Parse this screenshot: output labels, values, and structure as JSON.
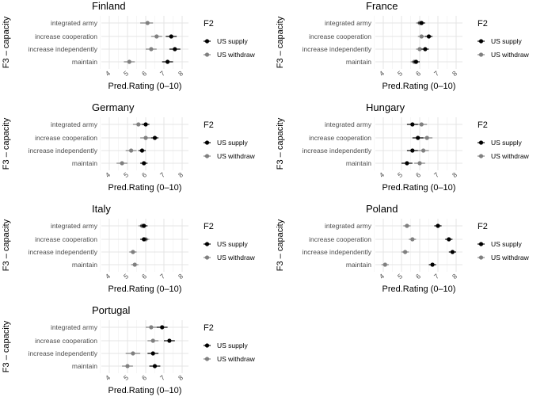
{
  "chart_data": {
    "type": "scatter",
    "subtype": "dot-and-errorbar (faceted)",
    "xlabel": "Pred.Rating (0–10)",
    "ylabel": "F3 – capacity",
    "xlim": [
      3.2,
      8.5
    ],
    "xticks": [
      "4",
      "5",
      "6",
      "7",
      "8"
    ],
    "categories": [
      "integrated army",
      "increase cooperation",
      "increase independently",
      "maintain"
    ],
    "legend": {
      "title": "F2",
      "position": "right",
      "entries": [
        {
          "name": "US supply",
          "color": "#000000"
        },
        {
          "name": "US withdraw",
          "color": "#808080"
        }
      ]
    },
    "facets": [
      {
        "title": "Finland",
        "series": [
          {
            "name": "US supply",
            "values": [
              null,
              7.4,
              7.6,
              7.2
            ],
            "ci": [
              null,
              [
                7.1,
                7.7
              ],
              [
                7.3,
                7.9
              ],
              [
                6.9,
                7.5
              ]
            ]
          },
          {
            "name": "US withdraw",
            "values": [
              6.1,
              6.6,
              6.3,
              5.1
            ],
            "ci": [
              [
                5.7,
                6.4
              ],
              [
                6.3,
                6.9
              ],
              [
                6.0,
                6.6
              ],
              [
                4.8,
                5.4
              ]
            ]
          }
        ]
      },
      {
        "title": "France",
        "series": [
          {
            "name": "US supply",
            "values": [
              6.1,
              6.5,
              6.3,
              5.8
            ],
            "ci": [
              [
                5.9,
                6.3
              ],
              [
                6.3,
                6.7
              ],
              [
                6.1,
                6.5
              ],
              [
                5.6,
                6.0
              ]
            ]
          },
          {
            "name": "US withdraw",
            "values": [
              6.0,
              6.1,
              6.0,
              5.7
            ],
            "ci": [
              [
                5.8,
                6.2
              ],
              [
                5.9,
                6.3
              ],
              [
                5.8,
                6.2
              ],
              [
                5.5,
                5.9
              ]
            ]
          }
        ]
      },
      {
        "title": "Germany",
        "series": [
          {
            "name": "US supply",
            "values": [
              6.0,
              6.5,
              5.8,
              5.9
            ],
            "ci": [
              [
                5.8,
                6.2
              ],
              [
                6.3,
                6.7
              ],
              [
                5.6,
                6.0
              ],
              [
                5.7,
                6.1
              ]
            ]
          },
          {
            "name": "US withdraw",
            "values": [
              5.6,
              6.0,
              5.2,
              4.7
            ],
            "ci": [
              [
                5.3,
                5.9
              ],
              [
                5.7,
                6.3
              ],
              [
                4.9,
                5.5
              ],
              [
                4.4,
                5.0
              ]
            ]
          }
        ]
      },
      {
        "title": "Hungary",
        "series": [
          {
            "name": "US supply",
            "values": [
              5.6,
              5.9,
              5.6,
              5.3
            ],
            "ci": [
              [
                5.3,
                5.9
              ],
              [
                5.6,
                6.2
              ],
              [
                5.3,
                5.9
              ],
              [
                5.0,
                5.6
              ]
            ]
          },
          {
            "name": "US withdraw",
            "values": [
              6.1,
              6.4,
              6.2,
              6.0
            ],
            "ci": [
              [
                5.8,
                6.4
              ],
              [
                6.1,
                6.7
              ],
              [
                5.9,
                6.5
              ],
              [
                5.7,
                6.3
              ]
            ]
          }
        ]
      },
      {
        "title": "Italy",
        "series": [
          {
            "name": "US supply",
            "values": [
              5.9,
              5.9,
              null,
              null
            ],
            "ci": [
              [
                5.7,
                6.1
              ],
              [
                5.7,
                6.1
              ],
              null,
              null
            ]
          },
          {
            "name": "US withdraw",
            "values": [
              5.8,
              6.0,
              5.3,
              5.4
            ],
            "ci": [
              [
                5.6,
                6.0
              ],
              [
                5.8,
                6.2
              ],
              [
                5.1,
                5.5
              ],
              [
                5.2,
                5.6
              ]
            ]
          }
        ]
      },
      {
        "title": "Poland",
        "series": [
          {
            "name": "US supply",
            "values": [
              7.0,
              7.6,
              7.8,
              6.7
            ],
            "ci": [
              [
                6.8,
                7.2
              ],
              [
                7.4,
                7.8
              ],
              [
                7.6,
                8.0
              ],
              [
                6.5,
                6.9
              ]
            ]
          },
          {
            "name": "US withdraw",
            "values": [
              5.3,
              5.6,
              5.2,
              4.1
            ],
            "ci": [
              [
                5.1,
                5.5
              ],
              [
                5.4,
                5.8
              ],
              [
                5.0,
                5.4
              ],
              [
                3.9,
                4.3
              ]
            ]
          }
        ]
      },
      {
        "title": "Portugal",
        "series": [
          {
            "name": "US supply",
            "values": [
              6.9,
              7.3,
              6.4,
              6.5
            ],
            "ci": [
              [
                6.6,
                7.2
              ],
              [
                7.0,
                7.6
              ],
              [
                6.1,
                6.7
              ],
              [
                6.2,
                6.8
              ]
            ]
          },
          {
            "name": "US withdraw",
            "values": [
              6.3,
              6.4,
              5.3,
              5.0
            ],
            "ci": [
              [
                6.0,
                6.6
              ],
              [
                6.1,
                6.7
              ],
              [
                4.9,
                5.7
              ],
              [
                4.7,
                5.3
              ]
            ]
          }
        ]
      }
    ]
  }
}
